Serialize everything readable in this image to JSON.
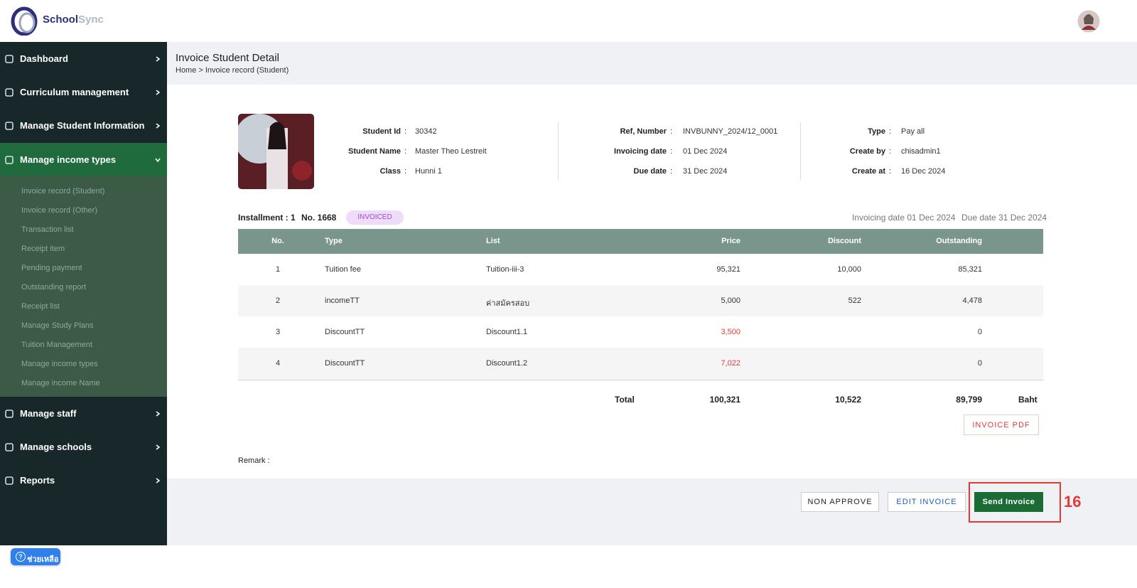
{
  "header": {
    "brand_first": "School",
    "brand_second": "Sync"
  },
  "sidebar": {
    "items_top": [
      "Dashboard",
      "Curriculum management",
      "Manage Student Information"
    ],
    "expanded": "Manage income types",
    "submenu": [
      "Invoice record (Student)",
      "Invoice record (Other)",
      "Transaction list",
      "Receipt item",
      "Pending payment",
      "Outstanding report",
      "Receipt list",
      "Manage Study Plans",
      "Tuition Management",
      "Manage income types",
      "Manage income Name"
    ],
    "items_bottom": [
      "Manage staff",
      "Manage schools",
      "Reports"
    ]
  },
  "page": {
    "title": "Invoice Student Detail",
    "breadcrumb": "Home > Invoice record (Student)"
  },
  "info": {
    "separator": ":",
    "columns": [
      [
        {
          "label": "Student Id",
          "value": "30342"
        },
        {
          "label": "Student Name",
          "value": "Master Theo Lestreit"
        },
        {
          "label": "Class",
          "value": "Hunni 1"
        }
      ],
      [
        {
          "label": "Ref, Number",
          "value": "INVBUNNY_2024/12_0001"
        },
        {
          "label": "Invoicing date",
          "value": "01 Dec 2024"
        },
        {
          "label": "Due date",
          "value": "31 Dec 2024"
        }
      ],
      [
        {
          "label": "Type",
          "value": "Pay all"
        },
        {
          "label": "Create by",
          "value": "chisadmin1"
        },
        {
          "label": "Create at",
          "value": "16 Dec 2024"
        }
      ]
    ]
  },
  "installment": {
    "label": "Installment : 1",
    "number": "No. 1668",
    "status": "INVOICED",
    "invoicing_date": "Invoicing date 01 Dec 2024",
    "due_date": "Due date 31 Dec 2024"
  },
  "table": {
    "headers": [
      "No.",
      "Type",
      "List",
      "Price",
      "Discount",
      "Outstanding"
    ],
    "rows": [
      {
        "no": "1",
        "type": "Tuition fee",
        "list": "Tuition-iii-3",
        "price": "95,321",
        "discount": "10,000",
        "outstanding": "85,321"
      },
      {
        "no": "2",
        "type": "incomeTT",
        "list": "ค่าสมัครสอบ",
        "price": "5,000",
        "discount": "522",
        "outstanding": "4,478"
      },
      {
        "no": "3",
        "type": "DiscountTT",
        "list": "Discount1.1",
        "price": "3,500",
        "price_color": "#e53935",
        "outstanding": "0"
      },
      {
        "no": "4",
        "type": "DiscountTT",
        "list": "Discount1.2",
        "price": "7,022",
        "price_color": "#e53935",
        "outstanding": "0"
      }
    ],
    "total": {
      "label": "Total",
      "price": "100,321",
      "discount": "10,522",
      "outstanding": "89,799",
      "currency": "Baht"
    }
  },
  "invoice_pdf": "INVOICE PDF",
  "remark": "Remark :",
  "actions": {
    "non_approve": "NON APPROVE",
    "edit": "EDIT INVOICE",
    "send": "Send Invoice",
    "annotation": "16"
  },
  "help": "ช่วยเหลือ"
}
